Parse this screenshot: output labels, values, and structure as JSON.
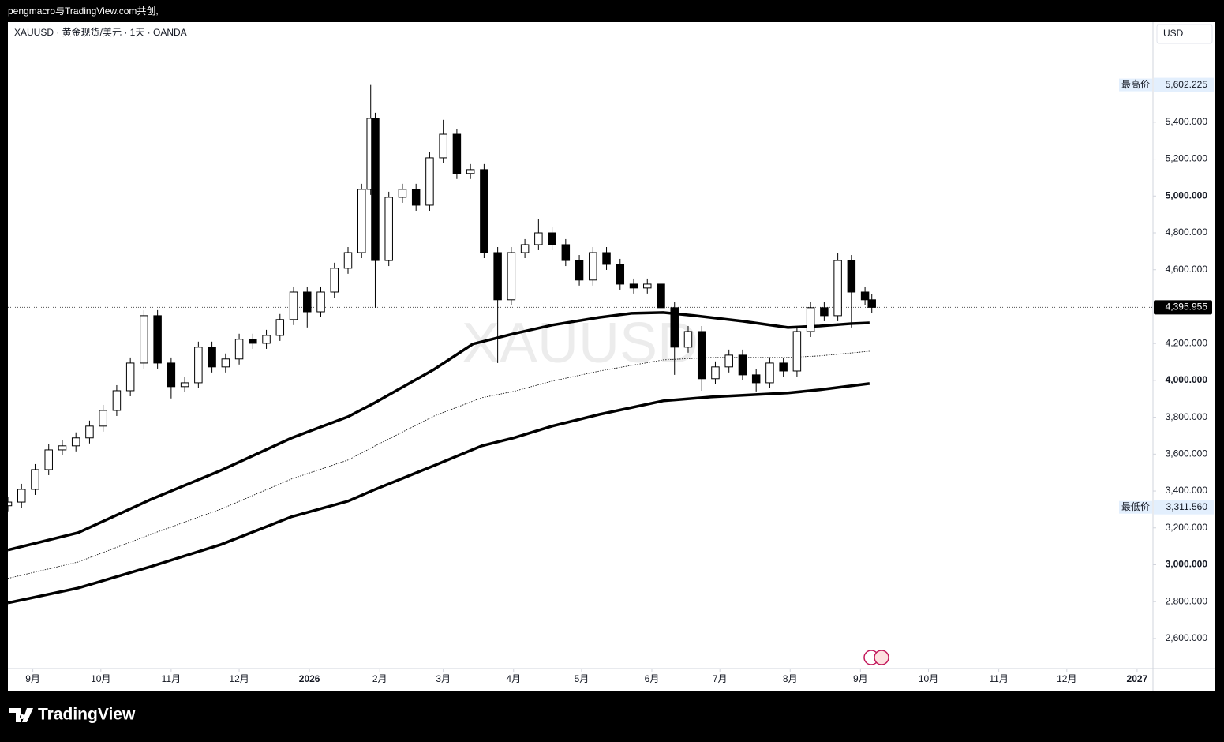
{
  "header": {
    "author": "pengmacro与TradingView.com共创,"
  },
  "chart_data": {
    "type": "candlestick",
    "legend": "XAUUSD · 黄金现货/美元 · 1天 · OANDA",
    "currency": "USD",
    "watermark": "XAUUSD",
    "up_color": "#ffffff",
    "down_color": "#000000",
    "line_color": "#000000",
    "grid": false,
    "xlim": [
      -11,
      494
    ],
    "ylim": [
      2437,
      5943
    ],
    "xticks": [
      {
        "value": 0,
        "label": "9月"
      },
      {
        "value": 30,
        "label": "10月"
      },
      {
        "value": 61,
        "label": "11月"
      },
      {
        "value": 91,
        "label": "12月"
      },
      {
        "value": 122,
        "label": "2026"
      },
      {
        "value": 153,
        "label": "2月"
      },
      {
        "value": 181,
        "label": "3月"
      },
      {
        "value": 212,
        "label": "4月"
      },
      {
        "value": 242,
        "label": "5月"
      },
      {
        "value": 273,
        "label": "6月"
      },
      {
        "value": 303,
        "label": "7月"
      },
      {
        "value": 334,
        "label": "8月"
      },
      {
        "value": 365,
        "label": "9月"
      },
      {
        "value": 395,
        "label": "10月"
      },
      {
        "value": 426,
        "label": "11月"
      },
      {
        "value": 456,
        "label": "12月"
      },
      {
        "value": 487,
        "label": "2027"
      }
    ],
    "yticks": [
      {
        "value": 2600,
        "label": "2,600.000"
      },
      {
        "value": 2800,
        "label": "2,800.000"
      },
      {
        "value": 3000,
        "label": "3,000.000"
      },
      {
        "value": 3200,
        "label": "3,200.000"
      },
      {
        "value": 3400,
        "label": "3,400.000"
      },
      {
        "value": 3600,
        "label": "3,600.000"
      },
      {
        "value": 3800,
        "label": "3,800.000"
      },
      {
        "value": 4000,
        "label": "4,000.000"
      },
      {
        "value": 4200,
        "label": "4,200.000"
      },
      {
        "value": 4600,
        "label": "4,600.000"
      },
      {
        "value": 4800,
        "label": "4,800.000"
      },
      {
        "value": 5000,
        "label": "5,000.000"
      },
      {
        "value": 5200,
        "label": "5,200.000"
      },
      {
        "value": 5400,
        "label": "5,400.000"
      }
    ],
    "x": [
      -11,
      -5,
      1,
      7,
      13,
      19,
      25,
      31,
      37,
      43,
      49,
      55,
      61,
      67,
      73,
      79,
      85,
      91,
      97,
      103,
      109,
      115,
      121,
      127,
      133,
      139,
      145,
      149,
      151,
      157,
      163,
      169,
      175,
      181,
      187,
      193,
      199,
      205,
      211,
      217,
      223,
      229,
      235,
      241,
      247,
      253,
      259,
      265,
      271,
      277,
      283,
      289,
      295,
      301,
      307,
      313,
      319,
      325,
      331,
      337,
      343,
      349,
      355,
      361,
      367,
      370
    ],
    "open": [
      3320,
      3340,
      3409,
      3516,
      3623,
      3645,
      3688,
      3752,
      3837,
      3944,
      4094,
      4351,
      4094,
      3966,
      3987,
      4180,
      4073,
      4116,
      4223,
      4201,
      4244,
      4330,
      4479,
      4372,
      4479,
      4608,
      4693,
      5036,
      5421,
      4650,
      4993,
      5036,
      4950,
      5207,
      5335,
      5122,
      5143,
      4693,
      4437,
      4693,
      4736,
      4800,
      4736,
      4650,
      4544,
      4693,
      4629,
      4522,
      4501,
      4522,
      4394,
      4180,
      4265,
      4009,
      4073,
      4137,
      4030,
      3987,
      4094,
      4051,
      4265,
      4394,
      4351,
      4650,
      4479,
      4437
    ],
    "high": [
      3370,
      3439,
      3546,
      3653,
      3675,
      3718,
      3782,
      3867,
      3974,
      4124,
      4380,
      4381,
      4124,
      4017,
      4210,
      4210,
      4146,
      4253,
      4253,
      4274,
      4360,
      4509,
      4509,
      4509,
      4638,
      4723,
      5066,
      5602,
      5451,
      5023,
      5066,
      5066,
      5237,
      5413,
      5365,
      5173,
      5173,
      4723,
      4723,
      4766,
      4873,
      4830,
      4766,
      4680,
      4723,
      4723,
      4659,
      4552,
      4552,
      4552,
      4424,
      4295,
      4295,
      4103,
      4167,
      4167,
      4060,
      4124,
      4124,
      4295,
      4424,
      4424,
      4690,
      4680,
      4509,
      4467
    ],
    "low": [
      3290,
      3310,
      3379,
      3486,
      3593,
      3615,
      3658,
      3722,
      3807,
      3914,
      4064,
      4064,
      3902,
      3936,
      3957,
      4043,
      4043,
      4086,
      4171,
      4171,
      4214,
      4300,
      4287,
      4342,
      4449,
      4578,
      4663,
      5006,
      4394,
      4620,
      4963,
      4920,
      4920,
      5177,
      5092,
      5092,
      4663,
      4094,
      4407,
      4663,
      4706,
      4706,
      4620,
      4514,
      4514,
      4599,
      4492,
      4471,
      4471,
      4364,
      4030,
      4150,
      3944,
      3979,
      4043,
      4000,
      3940,
      3957,
      4021,
      4021,
      4235,
      4321,
      4321,
      4287,
      4407,
      4366
    ],
    "close": [
      3340,
      3409,
      3516,
      3623,
      3645,
      3688,
      3752,
      3837,
      3944,
      4094,
      4351,
      4094,
      3966,
      3987,
      4180,
      4073,
      4116,
      4223,
      4201,
      4244,
      4330,
      4479,
      4372,
      4479,
      4608,
      4693,
      5036,
      5421,
      4650,
      4993,
      5036,
      4950,
      5207,
      5335,
      5122,
      5143,
      4693,
      4437,
      4693,
      4736,
      4800,
      4736,
      4650,
      4544,
      4693,
      4629,
      4522,
      4501,
      4522,
      4394,
      4180,
      4265,
      4009,
      4073,
      4137,
      4030,
      3987,
      4094,
      4051,
      4265,
      4394,
      4351,
      4650,
      4479,
      4437,
      4396
    ],
    "lines": [
      {
        "style": "solid",
        "x": [
          -11,
          20,
          52,
          83,
          114,
          139,
          151,
          177,
          194,
          212,
          229,
          250,
          264,
          278,
          292,
          313,
          333,
          347,
          361,
          369
        ],
        "values": [
          3080,
          3174,
          3354,
          3512,
          3687,
          3803,
          3880,
          4060,
          4197,
          4253,
          4300,
          4342,
          4364,
          4368,
          4351,
          4321,
          4287,
          4295,
          4308,
          4312
        ]
      },
      {
        "style": "dotted",
        "x": [
          -11,
          20,
          52,
          83,
          114,
          139,
          151,
          177,
          198,
          212,
          229,
          250,
          278,
          299,
          333,
          347,
          369
        ],
        "values": [
          2926,
          3015,
          3165,
          3302,
          3465,
          3568,
          3645,
          3807,
          3906,
          3940,
          3996,
          4051,
          4111,
          4124,
          4124,
          4133,
          4158
        ]
      },
      {
        "style": "solid",
        "x": [
          -11,
          20,
          52,
          83,
          114,
          139,
          151,
          177,
          198,
          212,
          229,
          250,
          278,
          299,
          333,
          347,
          369
        ],
        "values": [
          2793,
          2874,
          2990,
          3110,
          3260,
          3345,
          3409,
          3538,
          3645,
          3688,
          3752,
          3816,
          3889,
          3910,
          3932,
          3949,
          3983
        ]
      }
    ],
    "price_markers": [
      {
        "label": "最高价",
        "value": 5602.225,
        "value_label": "5,602.225"
      },
      {
        "label": "最低价",
        "value": 3311.56,
        "value_label": "3,311.560"
      }
    ],
    "last_price": {
      "value": 4395.955,
      "value_label": "4,395.955"
    }
  },
  "footer": {
    "brand": "TradingView"
  }
}
